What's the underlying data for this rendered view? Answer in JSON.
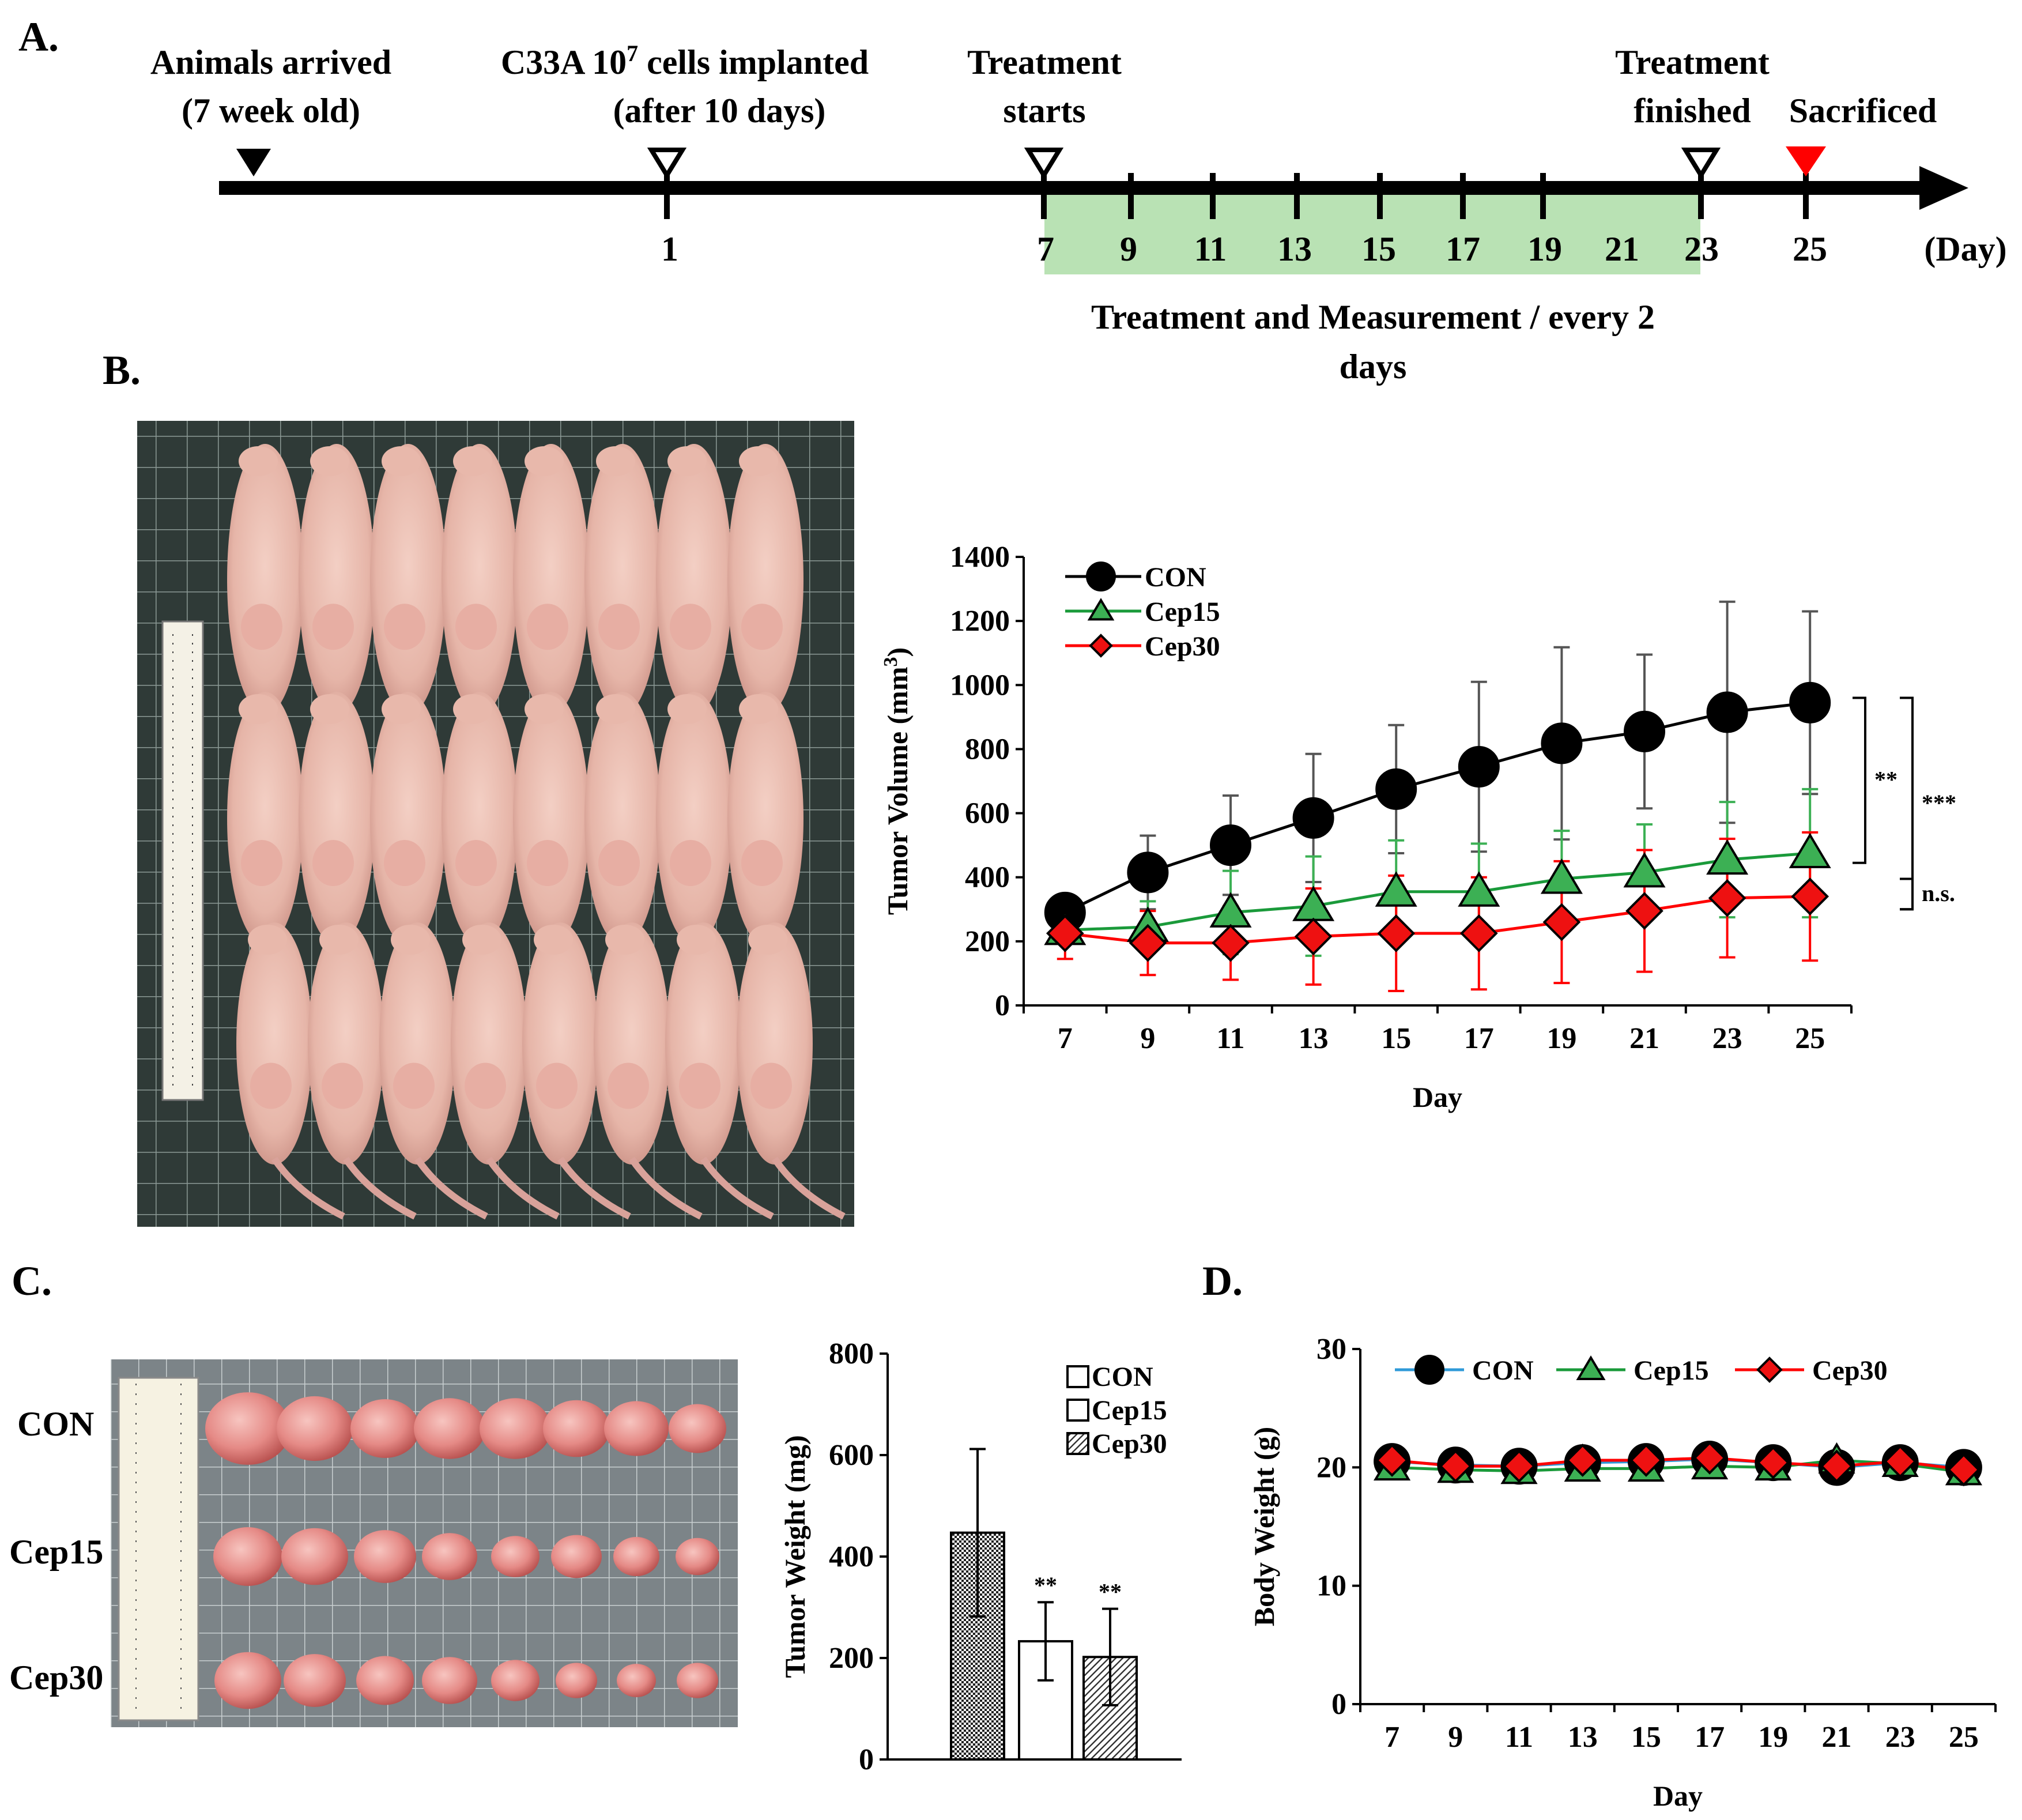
{
  "colors": {
    "con": "#000000",
    "cep15": "#1a9a3a",
    "cep15_fill": "#3cb054",
    "cep30": "#ff0000",
    "cep30_fill": "#ee1111",
    "treatment_band": "#b9e2b4",
    "sacrifice_marker": "#ff0000",
    "body_con_line": "#2f9ad8"
  },
  "panelA": {
    "letter": "A.",
    "events": [
      {
        "line1": "Animals arrived",
        "line2": "(7 week old)",
        "marker": "filled-triangle"
      },
      {
        "line1": "C33A 10",
        "sup": "7",
        "line1b": " cells implanted",
        "line2": "(after 10 days)",
        "marker": "open-triangle"
      },
      {
        "line1": "Treatment",
        "line2": "starts",
        "marker": "open-triangle"
      },
      {
        "line1": "Treatment",
        "line2": "finished",
        "marker": "open-triangle"
      },
      {
        "line1": "Sacrificed",
        "line2": "",
        "marker": "red-triangle"
      }
    ],
    "day_labels": [
      "1",
      "7",
      "9",
      "11",
      "13",
      "15",
      "17",
      "19",
      "21",
      "23",
      "25"
    ],
    "unit_label": "(Day)",
    "band_label_line1": "Treatment and Measurement / every 2",
    "band_label_line2": "days"
  },
  "panelB": {
    "letter": "B."
  },
  "panelC": {
    "letter": "C.",
    "row_labels": [
      "CON",
      "Cep15",
      "Cep30"
    ]
  },
  "panelD": {
    "letter": "D."
  },
  "chart_data": [
    {
      "id": "tumor-volume",
      "type": "line",
      "x": [
        7,
        9,
        11,
        13,
        15,
        17,
        19,
        21,
        23,
        25
      ],
      "xlabel": "Day",
      "ylabel": "Tumor Volume (mm",
      "ylabel_sup": "3",
      "ylabel_end": ")",
      "ylim": [
        0,
        1400
      ],
      "yticks": [
        0,
        200,
        400,
        600,
        800,
        1000,
        1200,
        1400
      ],
      "legend_position": "top-left",
      "series": [
        {
          "name": "CON",
          "marker": "circle",
          "values": [
            290,
            415,
            500,
            585,
            675,
            745,
            818,
            855,
            915,
            945
          ],
          "err": [
            50,
            115,
            155,
            200,
            200,
            265,
            300,
            240,
            345,
            285
          ]
        },
        {
          "name": "Cep15",
          "marker": "triangle",
          "values": [
            235,
            245,
            290,
            310,
            355,
            355,
            395,
            415,
            455,
            475
          ],
          "err": [
            40,
            80,
            130,
            155,
            160,
            150,
            150,
            150,
            180,
            200
          ]
        },
        {
          "name": "Cep30",
          "marker": "diamond",
          "values": [
            225,
            195,
            195,
            215,
            225,
            225,
            260,
            295,
            335,
            340
          ],
          "err": [
            80,
            100,
            115,
            150,
            180,
            175,
            190,
            190,
            185,
            200
          ]
        }
      ],
      "annotations": [
        "**",
        "***",
        "n.s."
      ]
    },
    {
      "id": "tumor-weight",
      "type": "bar",
      "categories": [
        "CON",
        "Cep15",
        "Cep30"
      ],
      "values": [
        447,
        233,
        202
      ],
      "err": [
        165,
        77,
        95
      ],
      "significance": [
        "",
        "**",
        "**"
      ],
      "ylabel": "Tumor Weight (mg)",
      "ylim": [
        0,
        800
      ],
      "yticks": [
        0,
        200,
        400,
        600,
        800
      ],
      "legend_position": "top-right",
      "legend": [
        "CON",
        "Cep15",
        "Cep30"
      ]
    },
    {
      "id": "body-weight",
      "type": "line",
      "x": [
        7,
        9,
        11,
        13,
        15,
        17,
        19,
        21,
        23,
        25
      ],
      "xlabel": "Day",
      "ylabel": "Body Weight (g)",
      "ylim": [
        0,
        30
      ],
      "yticks": [
        0,
        10,
        20,
        30
      ],
      "legend_position": "top",
      "series": [
        {
          "name": "CON",
          "marker": "circle",
          "values": [
            20.5,
            20.2,
            20.1,
            20.4,
            20.5,
            20.7,
            20.4,
            20.0,
            20.4,
            20.0
          ]
        },
        {
          "name": "Cep15",
          "marker": "triangle",
          "values": [
            20.0,
            19.8,
            19.7,
            19.9,
            19.9,
            20.1,
            20.0,
            20.6,
            20.3,
            19.6
          ]
        },
        {
          "name": "Cep30",
          "marker": "diamond",
          "values": [
            20.6,
            20.1,
            20.1,
            20.6,
            20.6,
            20.8,
            20.4,
            20.1,
            20.5,
            19.8
          ]
        }
      ]
    }
  ]
}
